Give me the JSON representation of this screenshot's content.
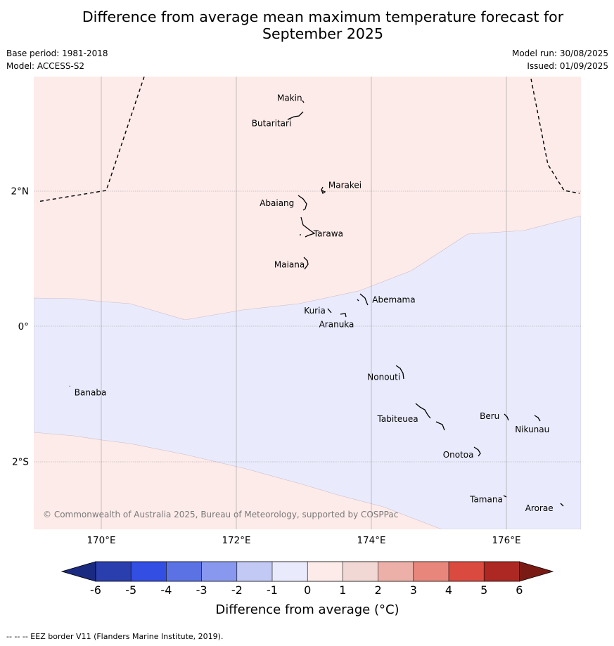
{
  "title_line1": "Difference from average mean maximum temperature forecast for",
  "title_line2": "September 2025",
  "meta": {
    "base_period": "Base period: 1981-2018",
    "model": "Model: ACCESS-S2",
    "model_run": "Model run: 30/08/2025",
    "issued": "Issued: 01/09/2025"
  },
  "map": {
    "lon_range": [
      169.0,
      177.1
    ],
    "lat_range": [
      -3.0,
      3.7
    ],
    "lon_ticks": [
      {
        "value": 170,
        "label": "170°E"
      },
      {
        "value": 172,
        "label": "172°E"
      },
      {
        "value": 174,
        "label": "174°E"
      },
      {
        "value": 176,
        "label": "176°E"
      }
    ],
    "lat_ticks": [
      {
        "value": 2,
        "label": "2°N"
      },
      {
        "value": 0,
        "label": "0°"
      },
      {
        "value": -2,
        "label": "2°S"
      }
    ],
    "fill_colors": {
      "warm_0_to_1": "#fdebe9",
      "cool_minus1_to_0": "#e9ebfc"
    },
    "places": [
      {
        "name": "Makin",
        "lon": 172.99,
        "lat": 3.37
      },
      {
        "name": "Butaritari",
        "lon": 172.79,
        "lat": 3.07
      },
      {
        "name": "Marakei",
        "lon": 173.28,
        "lat": 2.0
      },
      {
        "name": "Abaiang",
        "lon": 172.95,
        "lat": 1.82
      },
      {
        "name": "Tarawa",
        "lon": 173.05,
        "lat": 1.42
      },
      {
        "name": "Maiana",
        "lon": 173.03,
        "lat": 0.93
      },
      {
        "name": "Abemama",
        "lon": 173.92,
        "lat": 0.39
      },
      {
        "name": "Kuria",
        "lon": 173.42,
        "lat": 0.24
      },
      {
        "name": "Aranuka",
        "lon": 173.6,
        "lat": 0.16
      },
      {
        "name": "Nonouti",
        "lon": 174.43,
        "lat": -0.67
      },
      {
        "name": "Banaba",
        "lon": 169.54,
        "lat": -0.88
      },
      {
        "name": "Tabiteuea",
        "lon": 174.88,
        "lat": -1.3
      },
      {
        "name": "Beru",
        "lon": 175.98,
        "lat": -1.32
      },
      {
        "name": "Nikunau",
        "lon": 176.45,
        "lat": -1.36
      },
      {
        "name": "Onotoa",
        "lon": 175.57,
        "lat": -1.84
      },
      {
        "name": "Tamana",
        "lon": 175.97,
        "lat": -2.5
      },
      {
        "name": "Arorae",
        "lon": 176.83,
        "lat": -2.64
      }
    ],
    "copyright": "© Commonwealth of Australia 2025, Bureau of Meteorology, supported by COSPPac"
  },
  "colorbar": {
    "bins": [
      {
        "from": -6,
        "to": -5,
        "color": "#2a3eae"
      },
      {
        "from": -5,
        "to": -4,
        "color": "#334ee3"
      },
      {
        "from": -4,
        "to": -3,
        "color": "#5a72e4"
      },
      {
        "from": -3,
        "to": -2,
        "color": "#8898ee"
      },
      {
        "from": -2,
        "to": -1,
        "color": "#c3c9f5"
      },
      {
        "from": -1,
        "to": 0,
        "color": "#e9ebfc"
      },
      {
        "from": 0,
        "to": 1,
        "color": "#fdebe9"
      },
      {
        "from": 1,
        "to": 2,
        "color": "#f1d8d5"
      },
      {
        "from": 2,
        "to": 3,
        "color": "#ecb0a8"
      },
      {
        "from": 3,
        "to": 4,
        "color": "#e8867b"
      },
      {
        "from": 4,
        "to": 5,
        "color": "#db4a3f"
      },
      {
        "from": 5,
        "to": 6,
        "color": "#ad2822"
      }
    ],
    "extend_low_color": "#1a2a80",
    "extend_high_color": "#7a1a15",
    "tick_labels": [
      "-6",
      "-5",
      "-4",
      "-3",
      "-2",
      "-1",
      "0",
      "1",
      "2",
      "3",
      "4",
      "5",
      "6"
    ],
    "label": "Difference from average (°C)"
  },
  "footnote": "-- -- -- EEZ border V11 (Flanders Marine Institute, 2019)."
}
